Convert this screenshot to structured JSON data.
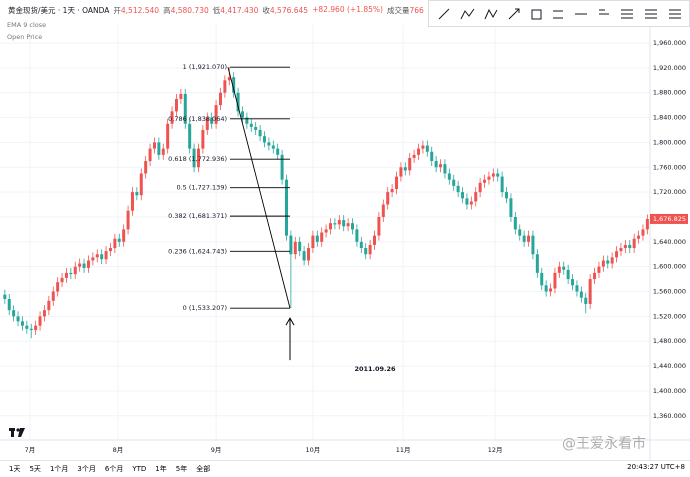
{
  "header": {
    "symbol": "黄金现货/美元 · 1天 · OANDA",
    "fields": [
      {
        "label": "开",
        "value": "4,512.540"
      },
      {
        "label": "高",
        "value": "4,580.730"
      },
      {
        "label": "低",
        "value": "4,417.430"
      },
      {
        "label": "收",
        "value": "4,576.645"
      },
      {
        "label": "+82.960 (+1.85%)",
        "value": ""
      },
      {
        "label": "成交量",
        "value": "766.0"
      }
    ]
  },
  "indicators": [
    "EMA 9 close",
    "Open Price"
  ],
  "footer": {
    "ranges": [
      "1天",
      "5天",
      "1个月",
      "3个月",
      "6个月",
      "YTD",
      "1年",
      "5年",
      "全部"
    ],
    "clock": "20:43:27 UTC+8"
  },
  "watermark": "@王爱永看市",
  "chart_data": {
    "type": "candlestick",
    "up_color": "#ef5350",
    "down_color": "#26a69a",
    "grid": true,
    "annotation": "2011.09.26",
    "last_price": {
      "value": 1676.825,
      "label": "1,676.825"
    },
    "xlim": [
      -1.1,
      146.6
    ],
    "xticks": [
      {
        "value": 5.7,
        "label": "7月"
      },
      {
        "value": 25.7,
        "label": "8月"
      },
      {
        "value": 48,
        "label": "9月"
      },
      {
        "value": 70,
        "label": "10月"
      },
      {
        "value": 90.5,
        "label": "11月"
      },
      {
        "value": 111.4,
        "label": "12月"
      }
    ],
    "ylim": [
      1321,
      1989
    ],
    "yticks": [
      {
        "value": 1960,
        "label": "1,960.000"
      },
      {
        "value": 1920,
        "label": "1,920.000"
      },
      {
        "value": 1880,
        "label": "1,880.000"
      },
      {
        "value": 1840,
        "label": "1,840.000"
      },
      {
        "value": 1800,
        "label": "1,800.000"
      },
      {
        "value": 1760,
        "label": "1,760.000"
      },
      {
        "value": 1720,
        "label": "1,720.000"
      },
      {
        "value": 1680,
        "label": "1,680.000"
      },
      {
        "value": 1640,
        "label": "1,640.000"
      },
      {
        "value": 1600,
        "label": "1,600.000"
      },
      {
        "value": 1560,
        "label": "1,560.000"
      },
      {
        "value": 1520,
        "label": "1,520.000"
      },
      {
        "value": 1480,
        "label": "1,480.000"
      },
      {
        "value": 1440,
        "label": "1,440.000"
      },
      {
        "value": 1400,
        "label": "1,400.000"
      },
      {
        "value": 1360,
        "label": "1,360.000"
      }
    ],
    "fib": [
      {
        "value": 1921.07,
        "label": "1 (1,921.070)"
      },
      {
        "value": 1838.064,
        "label": "0.786 (1,838.064)"
      },
      {
        "value": 1772.936,
        "label": "0.618 (1,772.936)"
      },
      {
        "value": 1727.139,
        "label": "0.5 (1,727.139)"
      },
      {
        "value": 1681.371,
        "label": "0.382 (1,681.371)"
      },
      {
        "value": 1624.743,
        "label": "0.236 (1,624.743)"
      },
      {
        "value": 1533.207,
        "label": "0 (1,533.207)"
      }
    ],
    "open": [
      1555,
      1548,
      1530,
      1520,
      1512,
      1505,
      1500,
      1498,
      1505,
      1520,
      1530,
      1545,
      1560,
      1575,
      1582,
      1590,
      1588,
      1600,
      1605,
      1598,
      1610,
      1615,
      1620,
      1612,
      1625,
      1630,
      1645,
      1640,
      1660,
      1690,
      1720,
      1715,
      1750,
      1770,
      1790,
      1800,
      1780,
      1790,
      1830,
      1850,
      1870,
      1878,
      1830,
      1790,
      1760,
      1790,
      1820,
      1840,
      1830,
      1860,
      1880,
      1900,
      1905,
      1880,
      1850,
      1840,
      1830,
      1825,
      1820,
      1810,
      1800,
      1795,
      1790,
      1780,
      1740,
      1650,
      1620,
      1640,
      1625,
      1610,
      1630,
      1650,
      1640,
      1655,
      1660,
      1670,
      1668,
      1675,
      1665,
      1670,
      1660,
      1640,
      1630,
      1620,
      1635,
      1650,
      1680,
      1700,
      1720,
      1725,
      1745,
      1760,
      1755,
      1775,
      1780,
      1790,
      1795,
      1785,
      1770,
      1760,
      1765,
      1750,
      1740,
      1730,
      1720,
      1710,
      1700,
      1705,
      1720,
      1735,
      1740,
      1745,
      1750,
      1745,
      1720,
      1710,
      1680,
      1660,
      1650,
      1640,
      1650,
      1620,
      1590,
      1570,
      1560,
      1565,
      1590,
      1600,
      1595,
      1580,
      1570,
      1560,
      1550,
      1540,
      1580,
      1590,
      1600,
      1610,
      1605,
      1615,
      1625,
      1630,
      1635,
      1630,
      1645,
      1650,
      1660
    ],
    "high": [
      1563,
      1556,
      1538,
      1528,
      1520,
      1513,
      1508,
      1513,
      1528,
      1538,
      1553,
      1568,
      1583,
      1590,
      1598,
      1598,
      1608,
      1613,
      1613,
      1618,
      1623,
      1628,
      1628,
      1633,
      1638,
      1653,
      1653,
      1668,
      1698,
      1728,
      1728,
      1758,
      1778,
      1798,
      1808,
      1808,
      1798,
      1838,
      1858,
      1878,
      1886,
      1886,
      1838,
      1798,
      1798,
      1828,
      1848,
      1848,
      1868,
      1888,
      1908,
      1921.07,
      1913,
      1888,
      1858,
      1848,
      1838,
      1833,
      1828,
      1818,
      1808,
      1803,
      1798,
      1788,
      1748,
      1658,
      1648,
      1648,
      1633,
      1638,
      1658,
      1658,
      1663,
      1668,
      1678,
      1678,
      1683,
      1683,
      1678,
      1678,
      1668,
      1648,
      1638,
      1643,
      1658,
      1688,
      1708,
      1728,
      1733,
      1753,
      1768,
      1768,
      1783,
      1788,
      1798,
      1803,
      1803,
      1793,
      1778,
      1773,
      1773,
      1758,
      1748,
      1738,
      1728,
      1718,
      1713,
      1728,
      1743,
      1748,
      1753,
      1758,
      1758,
      1753,
      1728,
      1718,
      1688,
      1668,
      1658,
      1658,
      1658,
      1628,
      1598,
      1578,
      1573,
      1598,
      1608,
      1608,
      1603,
      1588,
      1578,
      1568,
      1558,
      1588,
      1598,
      1608,
      1618,
      1618,
      1623,
      1633,
      1638,
      1643,
      1643,
      1653,
      1658,
      1668,
      1684
    ],
    "low": [
      1540,
      1522,
      1512,
      1504,
      1497,
      1492,
      1485,
      1490,
      1497,
      1512,
      1522,
      1537,
      1552,
      1567,
      1574,
      1580,
      1580,
      1592,
      1590,
      1590,
      1602,
      1607,
      1604,
      1604,
      1617,
      1622,
      1632,
      1632,
      1652,
      1682,
      1707,
      1707,
      1742,
      1762,
      1782,
      1772,
      1772,
      1782,
      1822,
      1842,
      1862,
      1822,
      1782,
      1752,
      1752,
      1782,
      1812,
      1822,
      1822,
      1852,
      1872,
      1892,
      1872,
      1842,
      1832,
      1822,
      1817,
      1812,
      1802,
      1792,
      1787,
      1782,
      1772,
      1732,
      1642,
      1533.207,
      1612,
      1617,
      1602,
      1602,
      1622,
      1632,
      1632,
      1647,
      1652,
      1660,
      1660,
      1657,
      1657,
      1652,
      1632,
      1622,
      1612,
      1612,
      1627,
      1642,
      1672,
      1692,
      1712,
      1717,
      1737,
      1747,
      1747,
      1767,
      1772,
      1782,
      1777,
      1762,
      1752,
      1752,
      1742,
      1732,
      1722,
      1712,
      1702,
      1692,
      1692,
      1697,
      1712,
      1727,
      1732,
      1737,
      1737,
      1712,
      1702,
      1672,
      1652,
      1642,
      1632,
      1632,
      1612,
      1582,
      1562,
      1552,
      1552,
      1557,
      1582,
      1587,
      1572,
      1562,
      1552,
      1542,
      1525,
      1532,
      1572,
      1582,
      1592,
      1597,
      1597,
      1607,
      1617,
      1622,
      1622,
      1622,
      1637,
      1642,
      1652
    ],
    "close": [
      1548,
      1530,
      1520,
      1512,
      1505,
      1500,
      1498,
      1505,
      1520,
      1530,
      1545,
      1560,
      1575,
      1582,
      1590,
      1588,
      1600,
      1605,
      1598,
      1610,
      1615,
      1620,
      1612,
      1625,
      1630,
      1645,
      1640,
      1660,
      1690,
      1720,
      1715,
      1750,
      1770,
      1790,
      1800,
      1780,
      1790,
      1830,
      1850,
      1870,
      1878,
      1830,
      1790,
      1760,
      1790,
      1820,
      1840,
      1830,
      1860,
      1880,
      1900,
      1905,
      1880,
      1850,
      1840,
      1830,
      1825,
      1820,
      1810,
      1800,
      1795,
      1790,
      1780,
      1740,
      1650,
      1620,
      1640,
      1625,
      1610,
      1630,
      1650,
      1640,
      1655,
      1660,
      1670,
      1668,
      1675,
      1665,
      1670,
      1660,
      1640,
      1630,
      1620,
      1635,
      1650,
      1680,
      1700,
      1720,
      1725,
      1745,
      1760,
      1755,
      1775,
      1780,
      1790,
      1795,
      1785,
      1770,
      1760,
      1765,
      1750,
      1740,
      1730,
      1720,
      1710,
      1700,
      1705,
      1720,
      1735,
      1740,
      1745,
      1750,
      1745,
      1720,
      1710,
      1680,
      1660,
      1650,
      1640,
      1650,
      1620,
      1590,
      1570,
      1560,
      1565,
      1590,
      1600,
      1595,
      1580,
      1570,
      1560,
      1550,
      1540,
      1580,
      1590,
      1600,
      1610,
      1605,
      1615,
      1625,
      1630,
      1635,
      1630,
      1645,
      1650,
      1660,
      1676.825
    ]
  }
}
